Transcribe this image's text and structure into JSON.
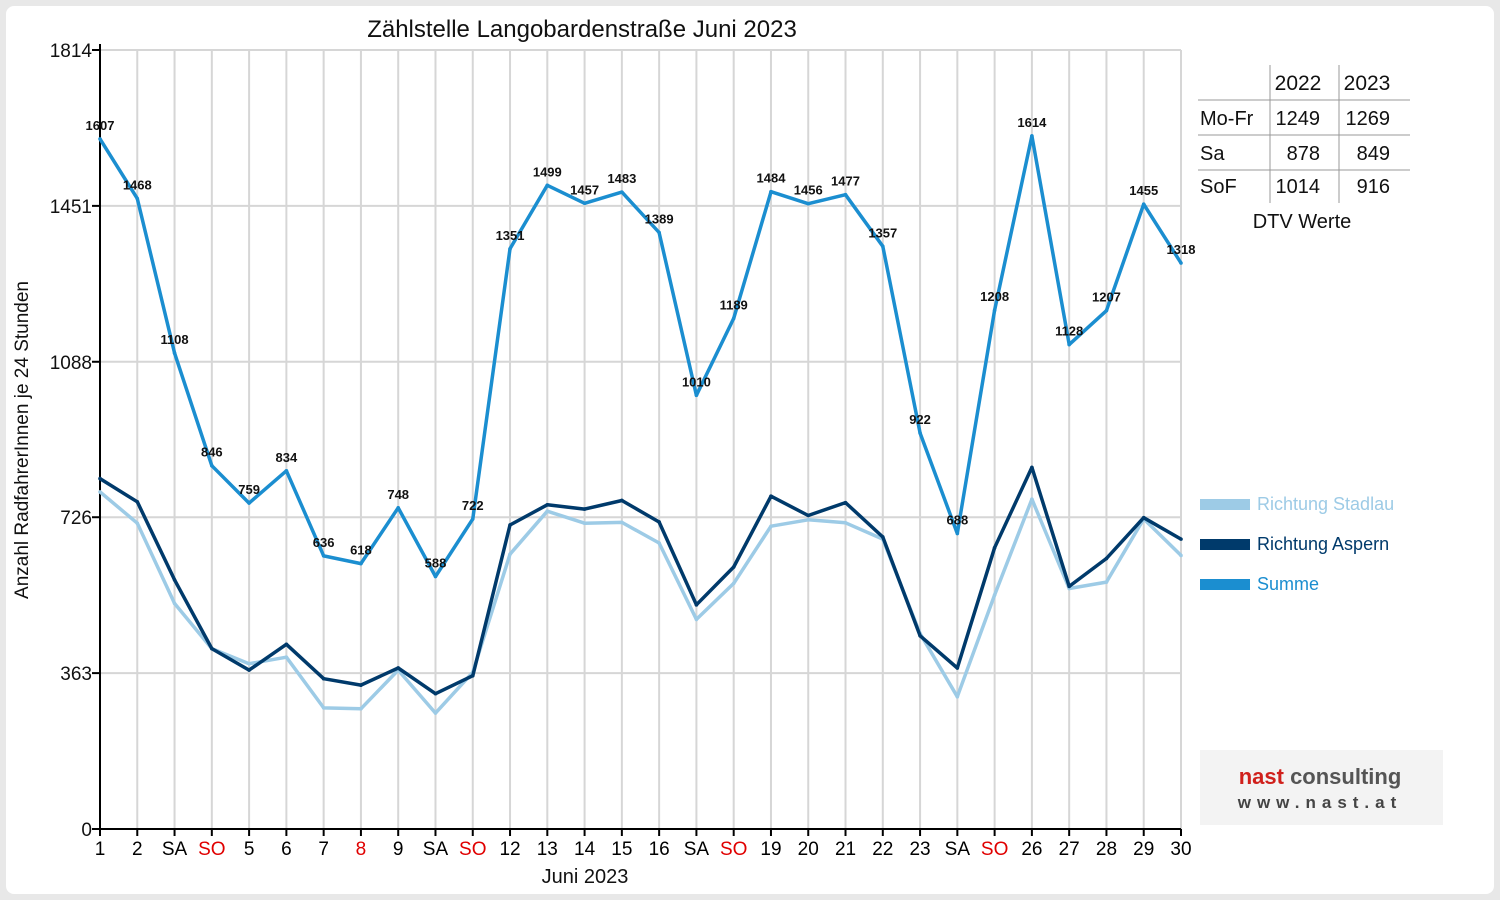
{
  "chart_data": {
    "type": "line",
    "title": "Zählstelle Langobardenstraße Juni 2023",
    "xlabel": "Juni 2023",
    "ylabel": "Anzahl RadfahrerInnen je 24 Stunden",
    "ylim": [
      0,
      1814
    ],
    "yticks": [
      0,
      363,
      726,
      1088,
      1451,
      1814
    ],
    "grid": true,
    "legend_position": "right",
    "categories": [
      "1",
      "2",
      "SA",
      "SO",
      "5",
      "6",
      "7",
      "8",
      "9",
      "SA",
      "SO",
      "12",
      "13",
      "14",
      "15",
      "16",
      "SA",
      "SO",
      "19",
      "20",
      "21",
      "22",
      "23",
      "SA",
      "SO",
      "26",
      "27",
      "28",
      "29",
      "30"
    ],
    "category_colors": [
      "#000000",
      "#000000",
      "#000000",
      "#e00000",
      "#000000",
      "#000000",
      "#000000",
      "#e00000",
      "#000000",
      "#000000",
      "#e00000",
      "#000000",
      "#000000",
      "#000000",
      "#000000",
      "#000000",
      "#000000",
      "#e00000",
      "#000000",
      "#000000",
      "#000000",
      "#000000",
      "#000000",
      "#000000",
      "#e00000",
      "#000000",
      "#000000",
      "#000000",
      "#000000",
      "#000000"
    ],
    "series": [
      {
        "name": "Richtung Stadlau",
        "color": "#9dcbe6",
        "values": [
          785,
          712,
          525,
          420,
          385,
          400,
          282,
          280,
          370,
          270,
          365,
          640,
          740,
          712,
          714,
          666,
          488,
          572,
          705,
          720,
          713,
          675,
          455,
          308,
          545,
          768,
          560,
          575,
          722,
          637
        ]
      },
      {
        "name": "Richtung Aspern",
        "color": "#003a6b",
        "values": [
          816,
          762,
          580,
          420,
          370,
          430,
          350,
          335,
          375,
          315,
          357,
          708,
          755,
          745,
          765,
          715,
          522,
          610,
          775,
          730,
          760,
          680,
          450,
          375,
          655,
          842,
          565,
          630,
          725,
          675
        ]
      },
      {
        "name": "Summe",
        "color": "#1b8ed0",
        "values": [
          1607,
          1468,
          1108,
          846,
          759,
          834,
          636,
          618,
          748,
          588,
          722,
          1351,
          1499,
          1457,
          1483,
          1389,
          1010,
          1189,
          1484,
          1456,
          1477,
          1357,
          922,
          688,
          1208,
          1614,
          1128,
          1207,
          1455,
          1318
        ],
        "data_labels": true
      }
    ]
  },
  "dtv_table": {
    "caption": "DTV Werte",
    "headers": [
      "",
      "2022",
      "2023"
    ],
    "rows": [
      {
        "label": "Mo-Fr",
        "v2022": "1249",
        "v2023": "1269"
      },
      {
        "label": "Sa",
        "v2022": "878",
        "v2023": "849"
      },
      {
        "label": "SoF",
        "v2022": "1014",
        "v2023": "916"
      }
    ]
  },
  "logo": {
    "line1": "nast consulting",
    "line2": "www.nast.at",
    "brand_color": "#d0201c"
  }
}
